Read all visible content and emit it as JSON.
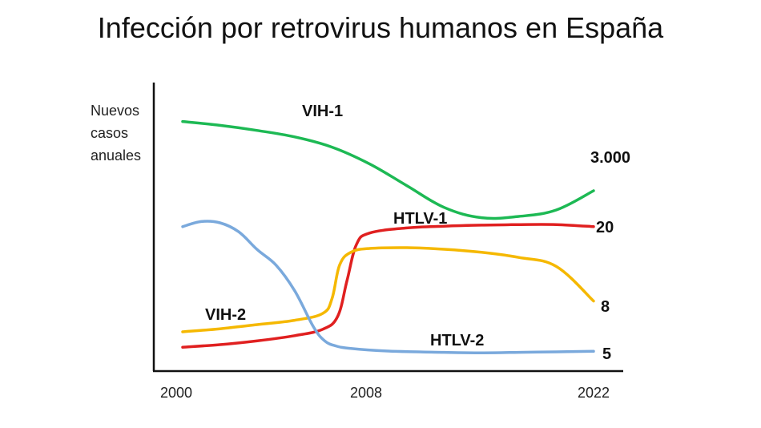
{
  "chart_data": {
    "type": "line",
    "title": "Infección por retrovirus humanos en España",
    "ylabel_lines": [
      "Nuevos",
      "casos",
      "anuales"
    ],
    "xlabel": "",
    "x_ticks": [
      "2000",
      "2008",
      "2022"
    ],
    "grid": false,
    "legend": "none",
    "note": "",
    "series": [
      {
        "name": "VIH-1",
        "end_label": "3.000",
        "color": "#1db954",
        "x": [
          2000,
          2002,
          2004,
          2006,
          2008,
          2010,
          2012,
          2014,
          2016,
          2018,
          2020,
          2022
        ],
        "y": [
          9.2,
          9.05,
          8.85,
          8.6,
          8.2,
          7.55,
          6.7,
          5.85,
          5.45,
          5.5,
          5.75,
          6.5
        ]
      },
      {
        "name": "HTLV-1",
        "end_label": "20",
        "color": "#e02020",
        "x": [
          2000,
          2002,
          2004,
          2006,
          2007.5,
          2008.3,
          2008.8,
          2009.3,
          2010,
          2012,
          2014,
          2016,
          2018,
          2020,
          2022
        ],
        "y": [
          0.4,
          0.5,
          0.65,
          0.85,
          1.1,
          1.6,
          3.0,
          4.4,
          4.85,
          5.05,
          5.12,
          5.16,
          5.18,
          5.18,
          5.1
        ]
      },
      {
        "name": "VIH-2",
        "end_label": "8",
        "color": "#f5b800",
        "x": [
          2000,
          2002,
          2004,
          2006,
          2007.5,
          2008.0,
          2008.4,
          2009,
          2010,
          2012,
          2014,
          2016,
          2018,
          2020,
          2022
        ],
        "y": [
          1.0,
          1.12,
          1.28,
          1.45,
          1.72,
          2.3,
          3.6,
          4.1,
          4.25,
          4.28,
          4.22,
          4.1,
          3.9,
          3.55,
          2.2
        ]
      },
      {
        "name": "HTLV-2",
        "end_label": "5",
        "color": "#7aa9dc",
        "x": [
          2000,
          2001,
          2002,
          2003,
          2004,
          2005,
          2006,
          2007,
          2007.6,
          2008.2,
          2009,
          2011,
          2014,
          2016,
          2018,
          2020,
          2022
        ],
        "y": [
          5.1,
          5.3,
          5.25,
          4.9,
          4.2,
          3.6,
          2.6,
          1.2,
          0.65,
          0.45,
          0.35,
          0.25,
          0.2,
          0.18,
          0.2,
          0.22,
          0.24
        ]
      }
    ],
    "x_range": [
      2000,
      2022
    ],
    "y_range": [
      0,
      10
    ]
  }
}
